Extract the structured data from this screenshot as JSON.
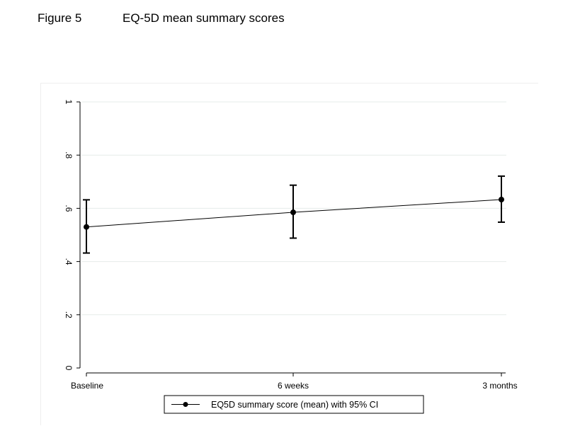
{
  "header": {
    "figure_label": "Figure 5",
    "figure_title": "EQ-5D mean summary scores"
  },
  "chart_data": {
    "type": "line",
    "categories": [
      "Baseline",
      "6 weeks",
      "3 months"
    ],
    "series": [
      {
        "name": "EQ5D summary score (mean) with 95% CI",
        "values": [
          0.53,
          0.585,
          0.633
        ],
        "ci_lower": [
          0.432,
          0.488,
          0.548
        ],
        "ci_upper": [
          0.632,
          0.687,
          0.721
        ]
      }
    ],
    "yticks": [
      "0",
      ".2",
      ".4",
      ".6",
      ".8",
      "1"
    ],
    "ylim": [
      0,
      1
    ],
    "grid": true,
    "legend_position": "bottom",
    "colors": {
      "line": "#000000",
      "grid": "#e6ece9",
      "plot_background": "#ffffff"
    }
  }
}
